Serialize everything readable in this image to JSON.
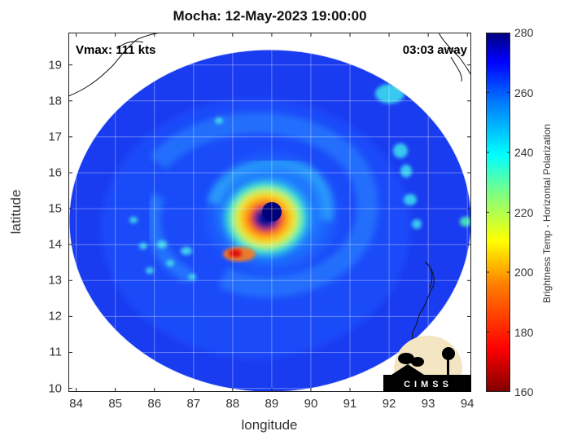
{
  "title": "Mocha: 12-May-2023 19:00:00",
  "vmax_text": "Vmax: 111 kts",
  "away_text": "03:03 away",
  "colorbar_label": "Brightness Temp - Horizontal Polarization",
  "logo_text": "CIMSS",
  "chart_data": {
    "type": "heatmap",
    "xlabel": "longitude",
    "ylabel": "latitude",
    "xlim": [
      83.8,
      94.1
    ],
    "ylim": [
      9.9,
      19.9
    ],
    "xticks": [
      84,
      85,
      86,
      87,
      88,
      89,
      90,
      91,
      92,
      93,
      94
    ],
    "yticks": [
      10,
      11,
      12,
      13,
      14,
      15,
      16,
      17,
      18,
      19
    ],
    "grid": true,
    "colorbar": {
      "min": 160,
      "max": 280,
      "ticks": [
        160,
        180,
        200,
        220,
        240,
        260,
        280
      ]
    },
    "storm_center": {
      "lon": 88.95,
      "lat": 14.85,
      "eye_tb": 278,
      "eyewall_tb": 195
    },
    "swath_center": {
      "lon": 88.9,
      "lat": 14.7
    },
    "background_tb": 262
  }
}
